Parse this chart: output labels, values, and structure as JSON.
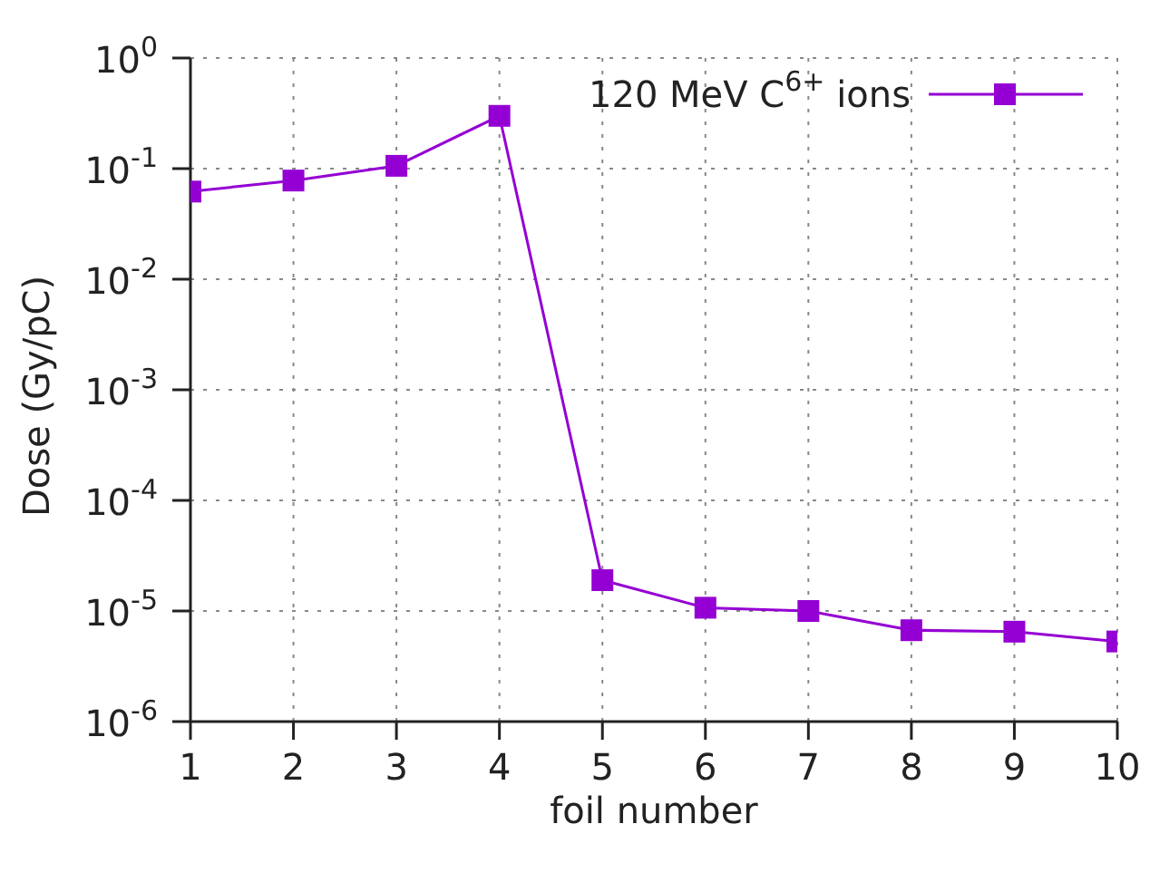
{
  "chart_data": {
    "type": "line",
    "xlabel": "foil number",
    "ylabel": "Dose (Gy/pC)",
    "x": [
      1,
      2,
      3,
      4,
      5,
      6,
      7,
      8,
      9,
      10
    ],
    "series": [
      {
        "name": "120 MeV C$^{6+}$ ions",
        "color": "#9400d3",
        "values": [
          0.062,
          0.078,
          0.106,
          0.3,
          1.9e-05,
          1.07e-05,
          1e-05,
          6.7e-06,
          6.5e-06,
          5.3e-06
        ]
      }
    ],
    "xlim": [
      1,
      10
    ],
    "xticks": [
      1,
      2,
      3,
      4,
      5,
      6,
      7,
      8,
      9,
      10
    ],
    "ylim": [
      1e-06,
      1
    ],
    "yticks": [
      {
        "value": 1e-06,
        "label": "10$^{-6}$"
      },
      {
        "value": 1e-05,
        "label": "10$^{-5}$"
      },
      {
        "value": 0.0001,
        "label": "10$^{-4}$"
      },
      {
        "value": 0.001,
        "label": "10$^{-3}$"
      },
      {
        "value": 0.01,
        "label": "10$^{-2}$"
      },
      {
        "value": 0.1,
        "label": "10$^{-1}$"
      },
      {
        "value": 1,
        "label": "10$^{0}$"
      }
    ],
    "log": true,
    "grid": true,
    "legend": "top right",
    "marker": "square",
    "line_style": "solid"
  }
}
